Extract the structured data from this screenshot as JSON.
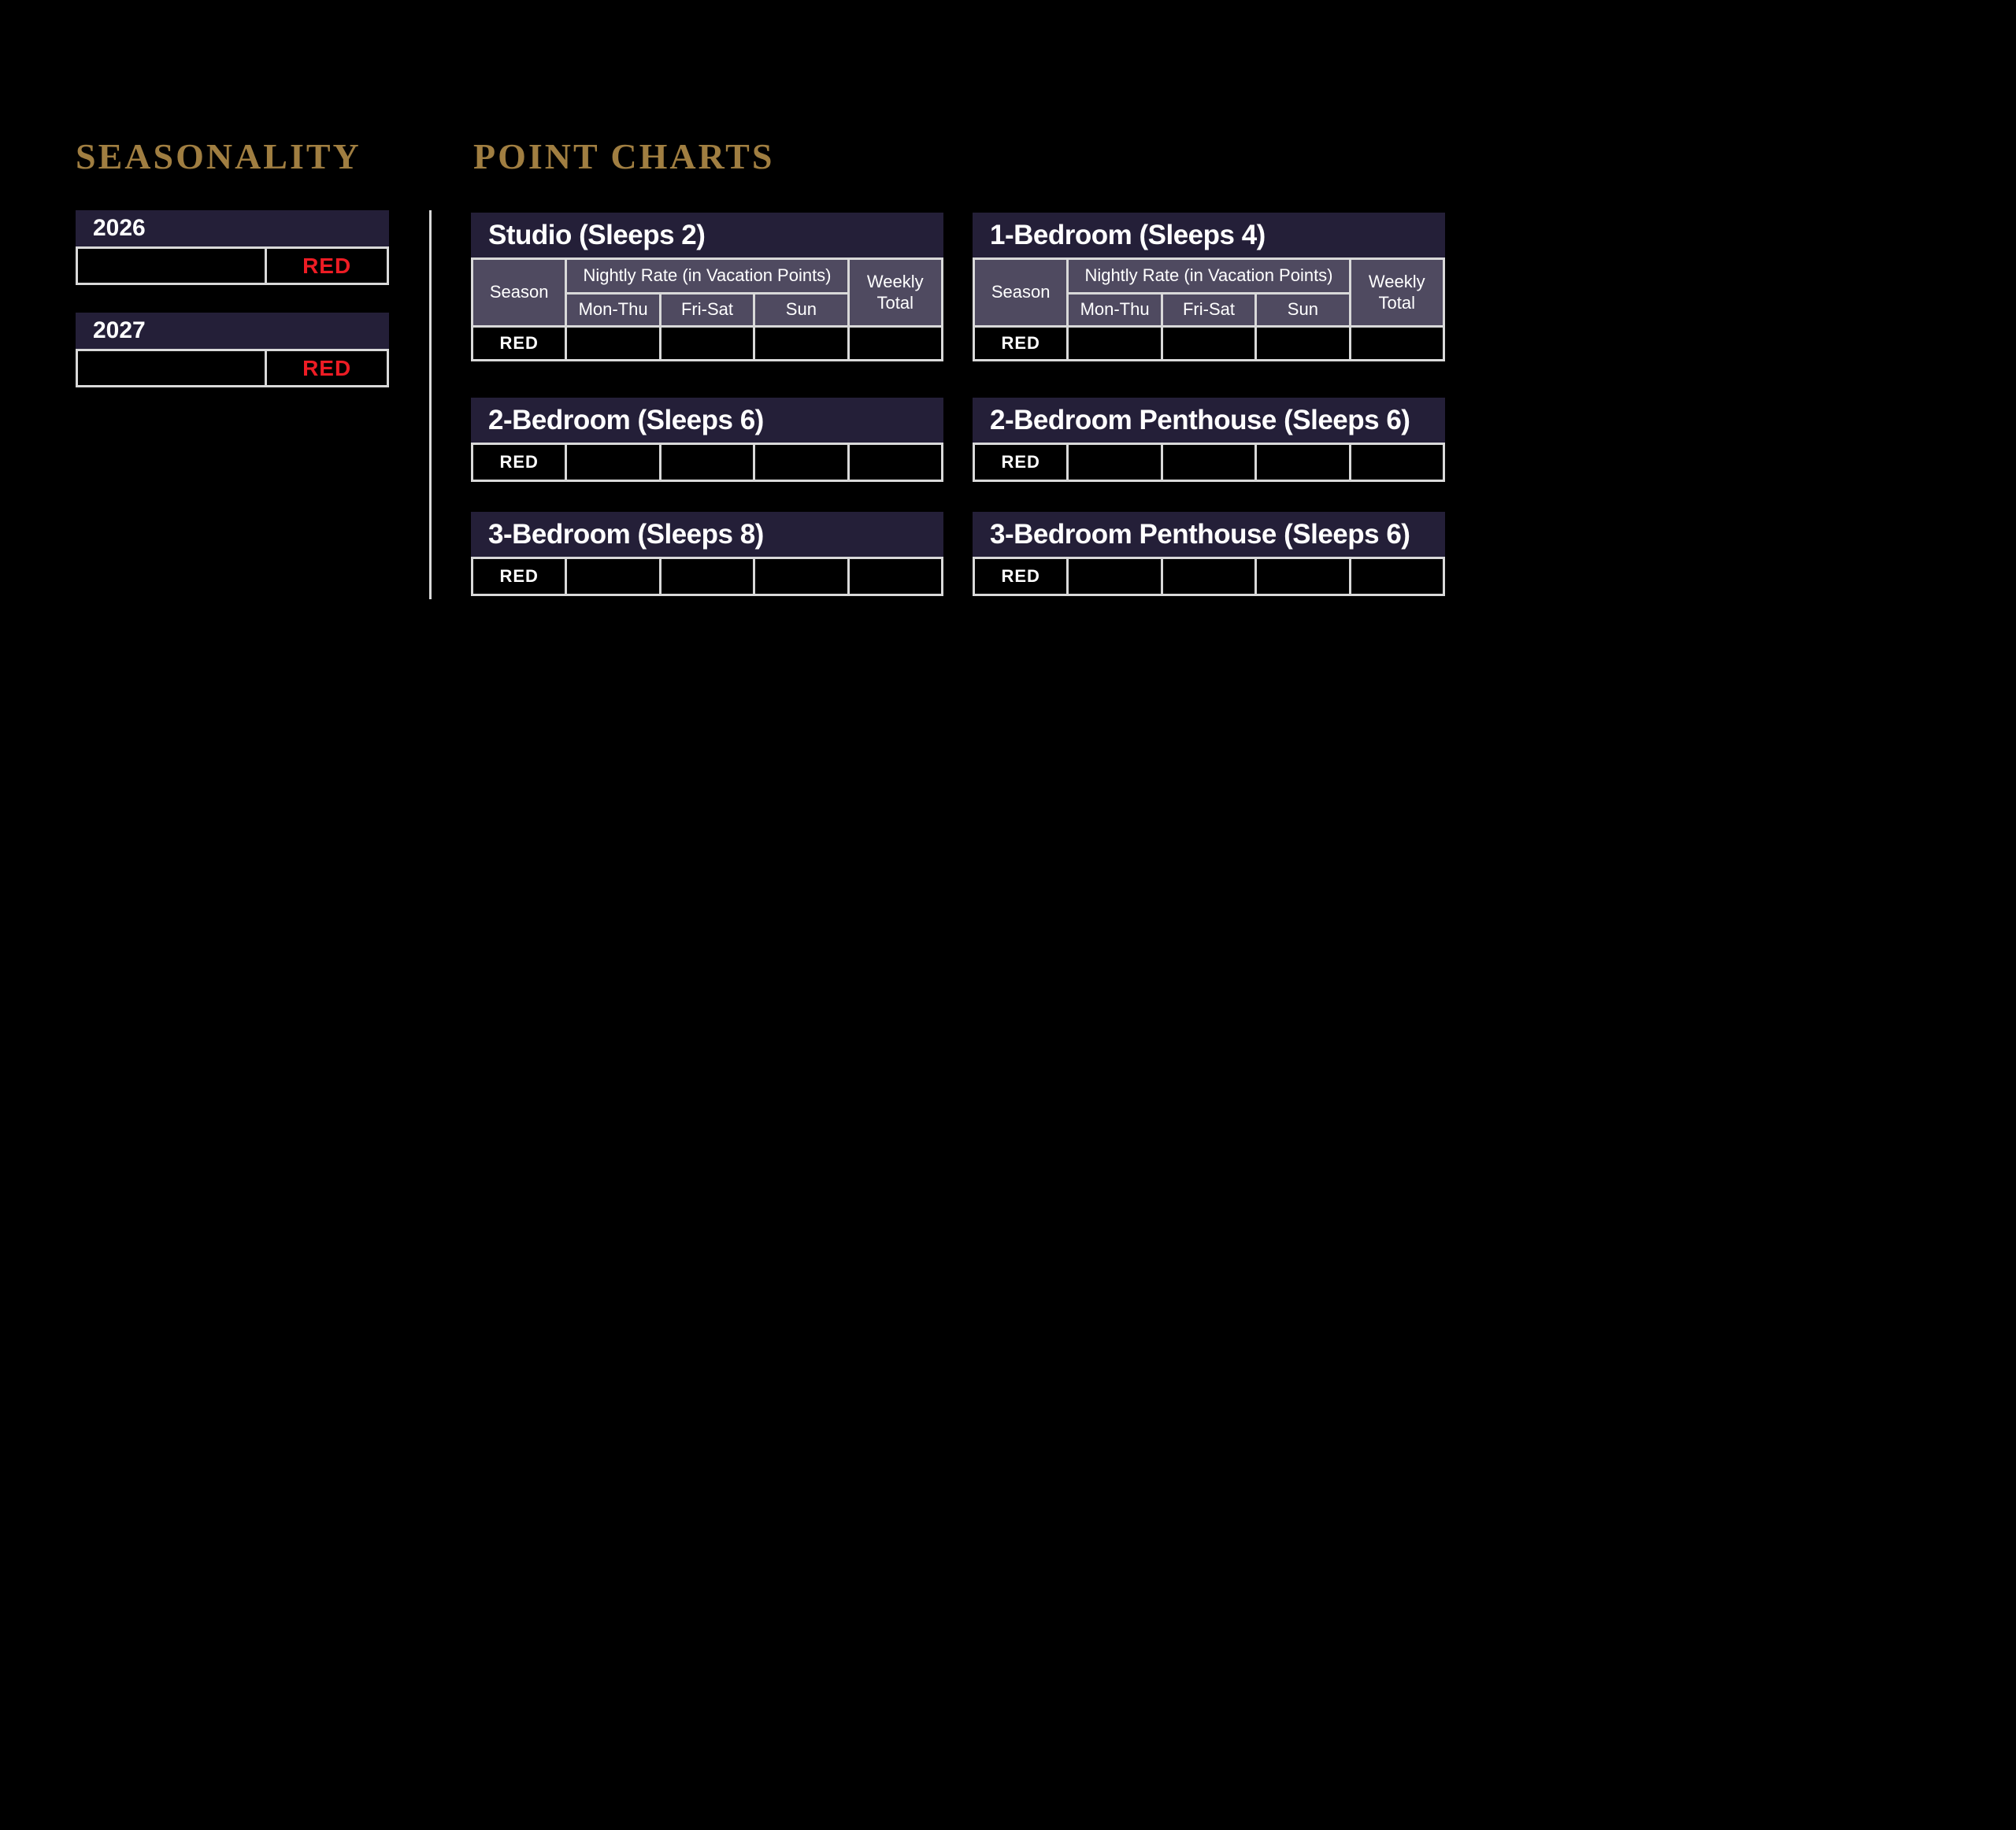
{
  "seasonality": {
    "title": "SEASONALITY",
    "years": [
      {
        "year": "2026",
        "season_label": "RED"
      },
      {
        "year": "2027",
        "season_label": "RED"
      }
    ]
  },
  "point_charts": {
    "title": "POINT CHARTS",
    "column_headers": {
      "season": "Season",
      "nightly_rate": "Nightly Rate (in Vacation Points)",
      "days": [
        "Mon-Thu",
        "Fri-Sat",
        "Sun"
      ],
      "weekly_total": "Weekly Total"
    },
    "tables": [
      {
        "title": "Studio (Sleeps 2)",
        "row": {
          "season": "RED",
          "mon_thu": "",
          "fri_sat": "",
          "sun": "",
          "weekly_total": ""
        }
      },
      {
        "title": "1-Bedroom (Sleeps 4)",
        "row": {
          "season": "RED",
          "mon_thu": "",
          "fri_sat": "",
          "sun": "",
          "weekly_total": ""
        }
      },
      {
        "title": "2-Bedroom (Sleeps 6)",
        "row": {
          "season": "RED",
          "mon_thu": "",
          "fri_sat": "",
          "sun": "",
          "weekly_total": ""
        }
      },
      {
        "title": "2-Bedroom Penthouse (Sleeps 6)",
        "row": {
          "season": "RED",
          "mon_thu": "",
          "fri_sat": "",
          "sun": "",
          "weekly_total": ""
        }
      },
      {
        "title": "3-Bedroom (Sleeps 8)",
        "row": {
          "season": "RED",
          "mon_thu": "",
          "fri_sat": "",
          "sun": "",
          "weekly_total": ""
        }
      },
      {
        "title": "3-Bedroom Penthouse (Sleeps 6)",
        "row": {
          "season": "RED",
          "mon_thu": "",
          "fri_sat": "",
          "sun": "",
          "weekly_total": ""
        }
      }
    ]
  },
  "colors": {
    "background": "#000000",
    "accent_gold": "#A07E41",
    "header_navy": "#241F38",
    "subheader_purple": "#4F4A60",
    "season_red": "#ED1C24",
    "border_gray": "#D9D9D9",
    "text_white": "#FFFFFF"
  }
}
